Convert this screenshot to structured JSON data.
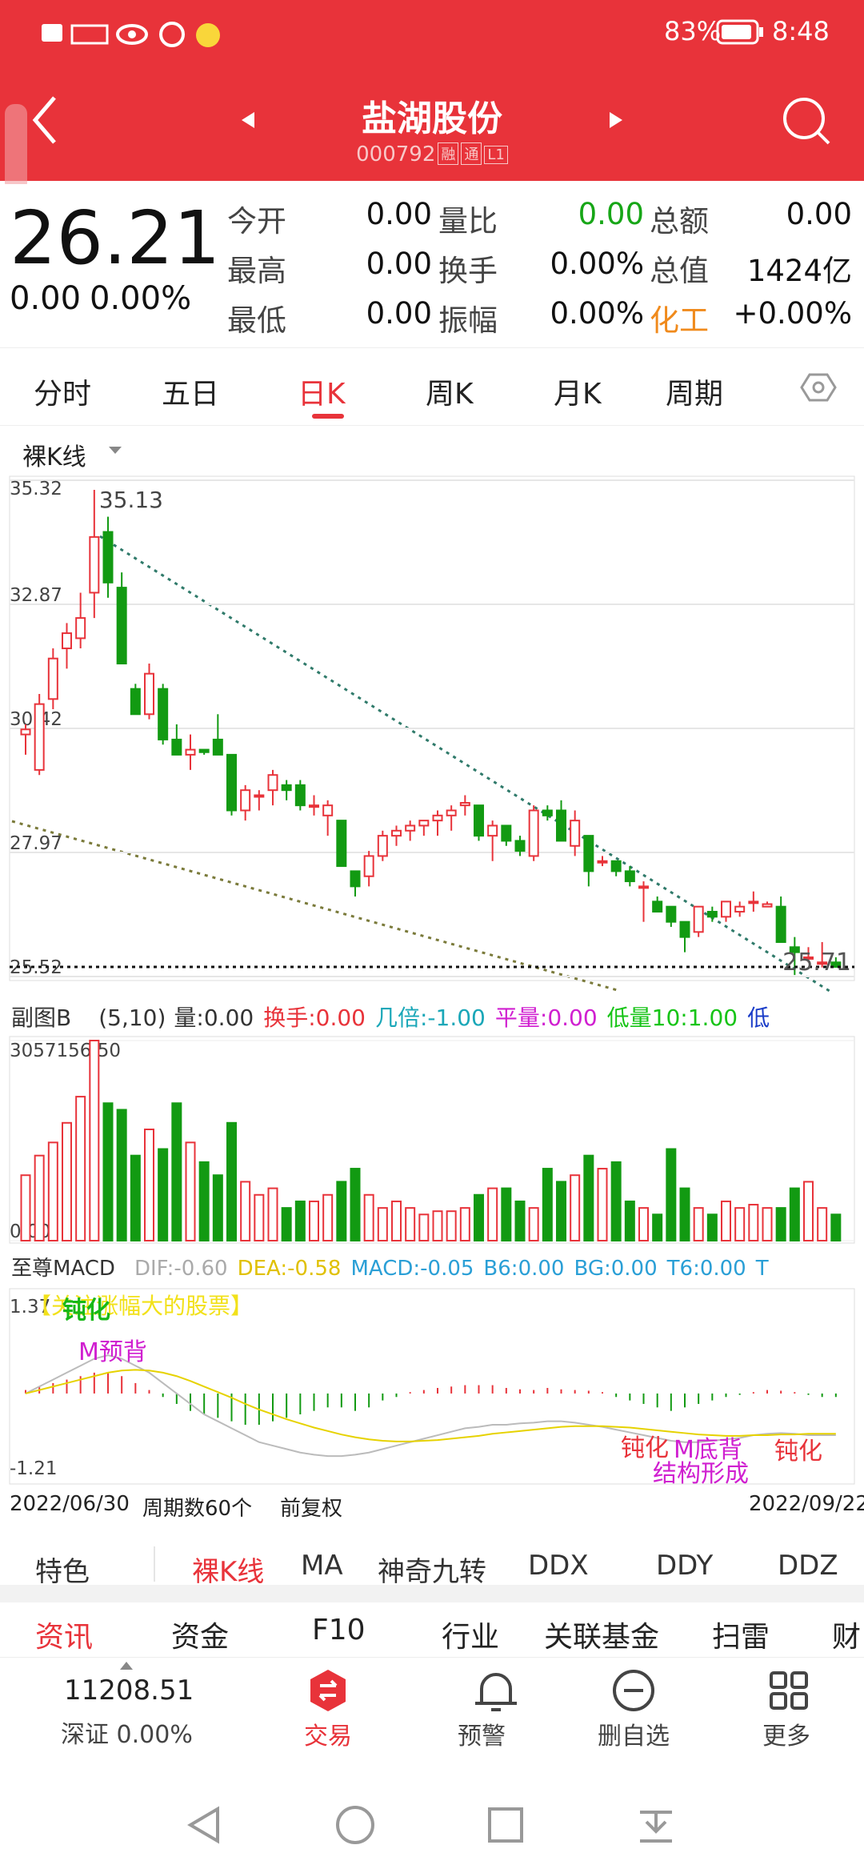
{
  "status_bar": {
    "battery": "83%",
    "time": "8:48"
  },
  "header": {
    "name": "盐湖股份",
    "code": "000792",
    "tags": [
      "融",
      "通",
      "L1"
    ]
  },
  "quote": {
    "price": "26.21",
    "change": "0.00",
    "change_pct": "0.00%",
    "fields": [
      {
        "label": "今开",
        "value": "0.00"
      },
      {
        "label": "量比",
        "value": "0.00",
        "value_color": "#17a617"
      },
      {
        "label": "总额",
        "value": "0.00"
      },
      {
        "label": "最高",
        "value": "0.00"
      },
      {
        "label": "换手",
        "value": "0.00%"
      },
      {
        "label": "总值",
        "value": "1424亿"
      },
      {
        "label": "最低",
        "value": "0.00"
      },
      {
        "label": "振幅",
        "value": "0.00%"
      },
      {
        "label": "化工",
        "value": "+0.00%",
        "label_color": "#f08a1c"
      }
    ]
  },
  "period_tabs": [
    "分时",
    "五日",
    "日K",
    "周K",
    "月K",
    "周期"
  ],
  "active_period": 2,
  "kline": {
    "mode": "裸K线",
    "ylim": [
      25.52,
      35.32
    ],
    "yticks": [
      35.32,
      32.87,
      30.42,
      27.97,
      25.52
    ],
    "high_label": 35.13,
    "last_label": 25.71,
    "candles": [
      [
        30.3,
        30.5,
        29.9,
        30.4
      ],
      [
        29.6,
        31.1,
        29.5,
        30.9
      ],
      [
        31.0,
        32.0,
        30.8,
        31.8
      ],
      [
        32.0,
        32.5,
        31.6,
        32.3
      ],
      [
        32.2,
        33.1,
        32.0,
        32.6
      ],
      [
        33.1,
        35.13,
        32.6,
        34.2
      ],
      [
        34.3,
        34.6,
        33.0,
        33.3
      ],
      [
        33.2,
        33.5,
        31.7,
        31.7
      ],
      [
        31.2,
        31.3,
        30.7,
        30.7
      ],
      [
        30.7,
        31.7,
        30.6,
        31.5
      ],
      [
        31.2,
        31.3,
        30.1,
        30.2
      ],
      [
        30.2,
        30.5,
        29.9,
        29.9
      ],
      [
        29.9,
        30.3,
        29.6,
        30.0
      ],
      [
        30.0,
        30.0,
        29.9,
        29.95
      ],
      [
        30.2,
        30.7,
        29.9,
        29.9
      ],
      [
        29.9,
        29.9,
        28.7,
        28.8
      ],
      [
        28.8,
        29.3,
        28.6,
        29.2
      ],
      [
        29.1,
        29.2,
        28.8,
        29.1
      ],
      [
        29.2,
        29.6,
        28.9,
        29.5
      ],
      [
        29.3,
        29.4,
        29.0,
        29.2
      ],
      [
        29.3,
        29.4,
        28.8,
        28.9
      ],
      [
        28.9,
        29.1,
        28.7,
        28.9
      ],
      [
        28.7,
        29.0,
        28.3,
        28.9
      ],
      [
        28.6,
        28.6,
        27.7,
        27.7
      ],
      [
        27.6,
        27.6,
        27.1,
        27.3
      ],
      [
        27.5,
        28.0,
        27.3,
        27.9
      ],
      [
        27.9,
        28.4,
        27.8,
        28.3
      ],
      [
        28.3,
        28.5,
        28.1,
        28.4
      ],
      [
        28.4,
        28.6,
        28.2,
        28.5
      ],
      [
        28.5,
        28.6,
        28.3,
        28.6
      ],
      [
        28.6,
        28.8,
        28.3,
        28.7
      ],
      [
        28.7,
        28.9,
        28.4,
        28.8
      ],
      [
        28.9,
        29.1,
        28.7,
        28.95
      ],
      [
        28.9,
        28.9,
        28.2,
        28.3
      ],
      [
        28.3,
        28.6,
        27.8,
        28.5
      ],
      [
        28.5,
        28.5,
        28.1,
        28.2
      ],
      [
        28.2,
        28.3,
        27.9,
        28.0
      ],
      [
        27.9,
        28.9,
        27.8,
        28.8
      ],
      [
        28.8,
        28.9,
        28.6,
        28.7
      ],
      [
        28.8,
        29.0,
        28.2,
        28.2
      ],
      [
        28.1,
        28.8,
        27.9,
        28.6
      ],
      [
        28.3,
        28.3,
        27.3,
        27.6
      ],
      [
        27.8,
        27.9,
        27.7,
        27.8
      ],
      [
        27.8,
        27.8,
        27.5,
        27.6
      ],
      [
        27.6,
        27.7,
        27.3,
        27.4
      ],
      [
        27.3,
        27.4,
        26.6,
        27.3
      ],
      [
        27.0,
        27.1,
        26.8,
        26.8
      ],
      [
        26.9,
        26.9,
        26.5,
        26.6
      ],
      [
        26.6,
        26.6,
        26.0,
        26.3
      ],
      [
        26.4,
        26.9,
        26.3,
        26.9
      ],
      [
        26.8,
        26.9,
        26.6,
        26.7
      ],
      [
        26.7,
        27.0,
        26.6,
        27.0
      ],
      [
        26.8,
        27.0,
        26.7,
        26.9
      ],
      [
        27.0,
        27.2,
        26.8,
        27.0
      ],
      [
        26.9,
        27.0,
        26.9,
        26.95
      ],
      [
        26.9,
        27.1,
        26.2,
        26.2
      ],
      [
        26.1,
        26.3,
        25.55,
        26.0
      ],
      [
        25.9,
        26.1,
        25.8,
        25.9
      ],
      [
        25.8,
        26.2,
        25.7,
        25.8
      ],
      [
        25.8,
        25.9,
        25.71,
        25.71
      ]
    ]
  },
  "volume": {
    "title": "副图B",
    "params": "(5,10)",
    "indicators": [
      {
        "label": "量:",
        "value": "0.00",
        "color": "#333333"
      },
      {
        "label": "换手:",
        "value": "0.00",
        "color": "#e8333a"
      },
      {
        "label": "几倍:",
        "value": "-1.00",
        "color": "#1aa7b8"
      },
      {
        "label": "平量:",
        "value": "0.00",
        "color": "#d01fd0"
      },
      {
        "label": "低量10:",
        "value": "1.00",
        "color": "#17c417"
      },
      {
        "label": "低",
        "value": "",
        "color": "#1a3cc8"
      }
    ],
    "ylim": [
      0,
      3057156.5
    ],
    "yticks": [
      {
        "value": 3057156.5,
        "label": "3057156.50"
      },
      {
        "value": 0,
        "label": "0.00"
      }
    ],
    "values": [
      1000000,
      1300000,
      1500000,
      1800000,
      2200000,
      3057156.5,
      2100000,
      2000000,
      1300000,
      1700000,
      1400000,
      2100000,
      1500000,
      1200000,
      1000000,
      1800000,
      900000,
      700000,
      800000,
      500000,
      600000,
      600000,
      700000,
      900000,
      1100000,
      700000,
      500000,
      600000,
      500000,
      400000,
      450000,
      450000,
      500000,
      700000,
      800000,
      800000,
      600000,
      500000,
      1100000,
      900000,
      1000000,
      1300000,
      1100000,
      1200000,
      600000,
      500000,
      400000,
      1400000,
      800000,
      500000,
      400000,
      600000,
      500000,
      550000,
      500000,
      500000,
      800000,
      900000,
      500000,
      400000
    ]
  },
  "macd": {
    "title": "至尊MACD",
    "indicators": [
      {
        "label": "DIF:",
        "value": "-0.60",
        "color": "#aaaaaa"
      },
      {
        "label": "DEA:",
        "value": "-0.58",
        "color": "#e0c000"
      },
      {
        "label": "MACD:",
        "value": "-0.05",
        "color": "#2a9fd6"
      },
      {
        "label": "B6:",
        "value": "0.00",
        "color": "#2a9fd6"
      },
      {
        "label": "BG:",
        "value": "0.00",
        "color": "#2a9fd6"
      },
      {
        "label": "T6:",
        "value": "0.00",
        "color": "#2a9fd6"
      },
      {
        "label": "T",
        "value": "",
        "color": "#2a9fd6"
      }
    ],
    "ylim": [
      -1.21,
      1.37
    ],
    "yticks": [
      1.37,
      -1.21
    ],
    "macd": [
      0.05,
      0.1,
      0.15,
      0.2,
      0.25,
      0.3,
      0.3,
      0.25,
      0.15,
      0.05,
      -0.05,
      -0.15,
      -0.25,
      -0.3,
      -0.35,
      -0.4,
      -0.45,
      -0.45,
      -0.4,
      -0.35,
      -0.3,
      -0.25,
      -0.2,
      -0.2,
      -0.25,
      -0.2,
      -0.1,
      -0.05,
      0.02,
      0.05,
      0.08,
      0.1,
      0.12,
      0.12,
      0.12,
      0.08,
      0.06,
      0.05,
      0.08,
      0.06,
      0.05,
      0.04,
      0.02,
      -0.05,
      -0.1,
      -0.15,
      -0.2,
      -0.25,
      -0.2,
      -0.15,
      -0.1,
      -0.05,
      -0.02,
      0.02,
      0.05,
      0.04,
      0.02,
      -0.02,
      -0.05,
      -0.05
    ],
    "dif": [
      0.0,
      0.1,
      0.2,
      0.3,
      0.4,
      0.5,
      0.55,
      0.5,
      0.4,
      0.3,
      0.15,
      0.0,
      -0.15,
      -0.3,
      -0.4,
      -0.5,
      -0.6,
      -0.7,
      -0.75,
      -0.8,
      -0.85,
      -0.88,
      -0.9,
      -0.9,
      -0.88,
      -0.85,
      -0.8,
      -0.75,
      -0.7,
      -0.65,
      -0.6,
      -0.55,
      -0.5,
      -0.48,
      -0.45,
      -0.45,
      -0.43,
      -0.42,
      -0.4,
      -0.4,
      -0.42,
      -0.45,
      -0.48,
      -0.52,
      -0.56,
      -0.6,
      -0.64,
      -0.68,
      -0.7,
      -0.7,
      -0.68,
      -0.66,
      -0.64,
      -0.6,
      -0.58,
      -0.57,
      -0.58,
      -0.6,
      -0.6,
      -0.6
    ],
    "dea": [
      0.0,
      0.05,
      0.1,
      0.15,
      0.2,
      0.25,
      0.3,
      0.33,
      0.34,
      0.33,
      0.3,
      0.25,
      0.18,
      0.1,
      0.02,
      -0.06,
      -0.15,
      -0.23,
      -0.3,
      -0.37,
      -0.43,
      -0.49,
      -0.54,
      -0.59,
      -0.63,
      -0.66,
      -0.68,
      -0.69,
      -0.69,
      -0.68,
      -0.67,
      -0.65,
      -0.63,
      -0.61,
      -0.58,
      -0.56,
      -0.54,
      -0.52,
      -0.5,
      -0.48,
      -0.47,
      -0.47,
      -0.47,
      -0.48,
      -0.49,
      -0.51,
      -0.53,
      -0.55,
      -0.57,
      -0.59,
      -0.6,
      -0.61,
      -0.61,
      -0.6,
      -0.6,
      -0.59,
      -0.59,
      -0.58,
      -0.58,
      -0.58
    ],
    "annotations": [
      "【关注涨幅大的股票】",
      "钝化",
      "M预背",
      "钝化",
      "M底背",
      "结构形成",
      "钝化"
    ]
  },
  "chart_footer": {
    "start": "2022/06/30",
    "period": "周期数60个",
    "adjust": "前复权",
    "end": "2022/09/22"
  },
  "indicator_tabs": [
    "特色",
    "裸K线",
    "MA",
    "神奇九转",
    "DDX",
    "DDY",
    "DDZ"
  ],
  "info_tabs": [
    "资讯",
    "资金",
    "F10",
    "行业",
    "关联基金",
    "扫雷",
    "财"
  ],
  "bottom_nav": {
    "index_value": "11208.51",
    "index_name": "深证 0.00%",
    "items": [
      "交易",
      "预警",
      "删自选",
      "更多"
    ]
  }
}
